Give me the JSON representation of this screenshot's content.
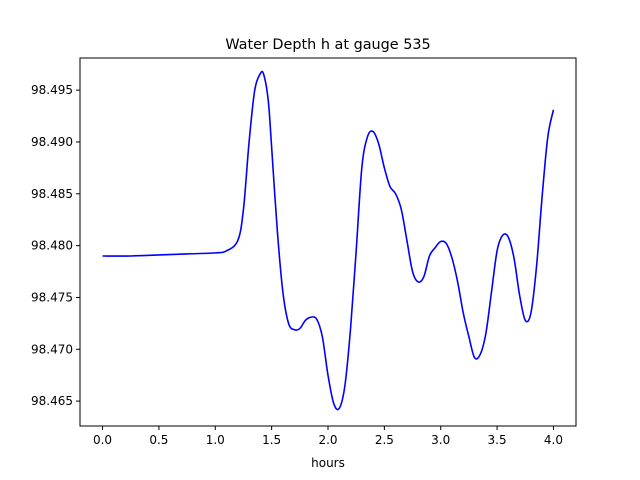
{
  "chart_data": {
    "type": "line",
    "title": "Water Depth h at gauge 535",
    "xlabel": "hours",
    "ylabel": "",
    "xlim": [
      -0.2,
      4.2
    ],
    "ylim": [
      98.4626,
      98.4981
    ],
    "grid": false,
    "x_ticks": [
      "0.0",
      "0.5",
      "1.0",
      "1.5",
      "2.0",
      "2.5",
      "3.0",
      "3.5",
      "4.0"
    ],
    "y_ticks": [
      "98.465",
      "98.470",
      "98.475",
      "98.480",
      "98.485",
      "98.490",
      "98.495"
    ],
    "series": [
      {
        "color": "#0000ff",
        "x": [
          0.0,
          0.25,
          0.5,
          0.75,
          1.0,
          1.1,
          1.2,
          1.25,
          1.3,
          1.35,
          1.4,
          1.43,
          1.47,
          1.5,
          1.55,
          1.6,
          1.65,
          1.7,
          1.75,
          1.8,
          1.85,
          1.9,
          1.95,
          2.0,
          2.05,
          2.1,
          2.15,
          2.2,
          2.25,
          2.3,
          2.35,
          2.4,
          2.45,
          2.5,
          2.55,
          2.6,
          2.65,
          2.7,
          2.75,
          2.8,
          2.85,
          2.9,
          2.95,
          3.0,
          3.05,
          3.1,
          3.15,
          3.2,
          3.25,
          3.3,
          3.35,
          3.4,
          3.45,
          3.5,
          3.55,
          3.6,
          3.65,
          3.7,
          3.75,
          3.8,
          3.85,
          3.9,
          3.95,
          4.0
        ],
        "y": [
          98.479,
          98.479,
          98.4791,
          98.4792,
          98.4793,
          98.4795,
          98.4805,
          98.4835,
          98.49,
          98.495,
          98.4966,
          98.4965,
          98.494,
          98.4895,
          98.4815,
          98.4755,
          98.4725,
          98.4719,
          98.472,
          98.4728,
          98.4731,
          98.4729,
          98.4712,
          98.4675,
          98.4648,
          98.4643,
          98.4665,
          98.472,
          98.4795,
          98.4875,
          98.4905,
          98.491,
          98.4898,
          98.4875,
          98.4857,
          98.485,
          98.4835,
          98.4805,
          98.4775,
          98.4765,
          98.477,
          98.479,
          98.4798,
          98.4804,
          98.4802,
          98.4788,
          98.4765,
          98.4735,
          98.4712,
          98.4692,
          98.4695,
          98.4715,
          98.4755,
          98.4795,
          98.481,
          98.4808,
          98.4788,
          98.4752,
          98.4728,
          98.4735,
          98.478,
          98.4848,
          98.4905,
          98.4931
        ]
      }
    ]
  }
}
